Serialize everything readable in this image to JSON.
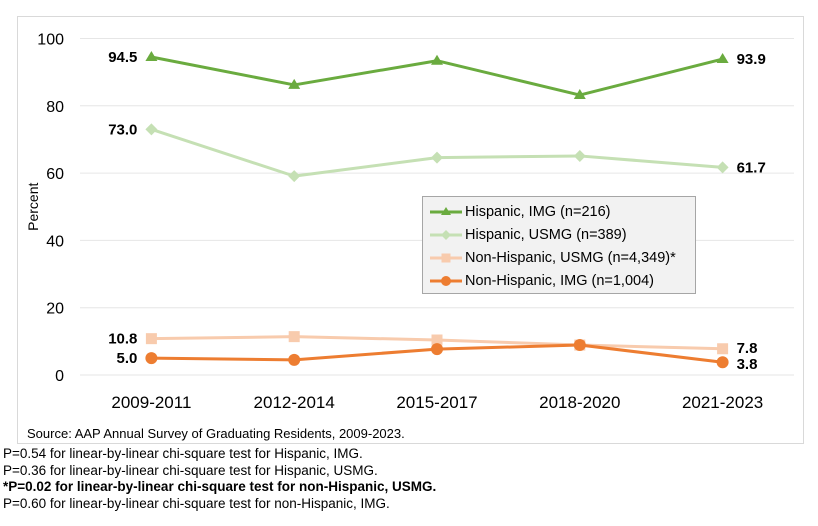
{
  "chart_data": {
    "type": "line",
    "title": "",
    "xlabel": "",
    "ylabel": "Percent",
    "ylim": [
      0,
      100
    ],
    "yticks": [
      0,
      20,
      40,
      60,
      80,
      100
    ],
    "grid": true,
    "legend_position": "center-right",
    "categories": [
      "2009-2011",
      "2012-2014",
      "2015-2017",
      "2018-2020",
      "2021-2023"
    ],
    "series": [
      {
        "name": "Hispanic, IMG (n=216)",
        "marker": "triangle",
        "color": "#6aab3f",
        "values": [
          94.5,
          86.2,
          93.4,
          83.2,
          93.9
        ],
        "labels": {
          "first": "94.5",
          "last": "93.9"
        }
      },
      {
        "name": "Hispanic, USMG (n=389)",
        "marker": "diamond",
        "color": "#c5e0b4",
        "values": [
          73.0,
          59.1,
          64.6,
          65.1,
          61.7
        ],
        "labels": {
          "first": "73.0",
          "last": "61.7"
        }
      },
      {
        "name": "Non-Hispanic, USMG (n=4,349)*",
        "marker": "square",
        "color": "#f8cbad",
        "values": [
          10.8,
          11.4,
          10.4,
          8.9,
          7.8
        ],
        "labels": {
          "first": "10.8",
          "last": "7.8"
        }
      },
      {
        "name": "Non-Hispanic, IMG (n=1,004)",
        "marker": "circle",
        "color": "#ed7d31",
        "values": [
          5.0,
          4.5,
          7.7,
          8.9,
          3.8
        ],
        "labels": {
          "first": "5.0",
          "last": "3.8"
        }
      }
    ]
  },
  "source": "Source: AAP Annual Survey of Graduating Residents, 2009-2023.",
  "notes": [
    {
      "text": "P=0.54 for linear-by-linear chi-square test for Hispanic, IMG.",
      "bold": false
    },
    {
      "text": "P=0.36 for linear-by-linear chi-square test for Hispanic, USMG.",
      "bold": false
    },
    {
      "text": "*P=0.02 for linear-by-linear chi-square test for non-Hispanic, USMG.",
      "bold": true
    },
    {
      "text": "P=0.60 for linear-by-linear chi-square test for non-Hispanic, IMG.",
      "bold": false
    }
  ]
}
